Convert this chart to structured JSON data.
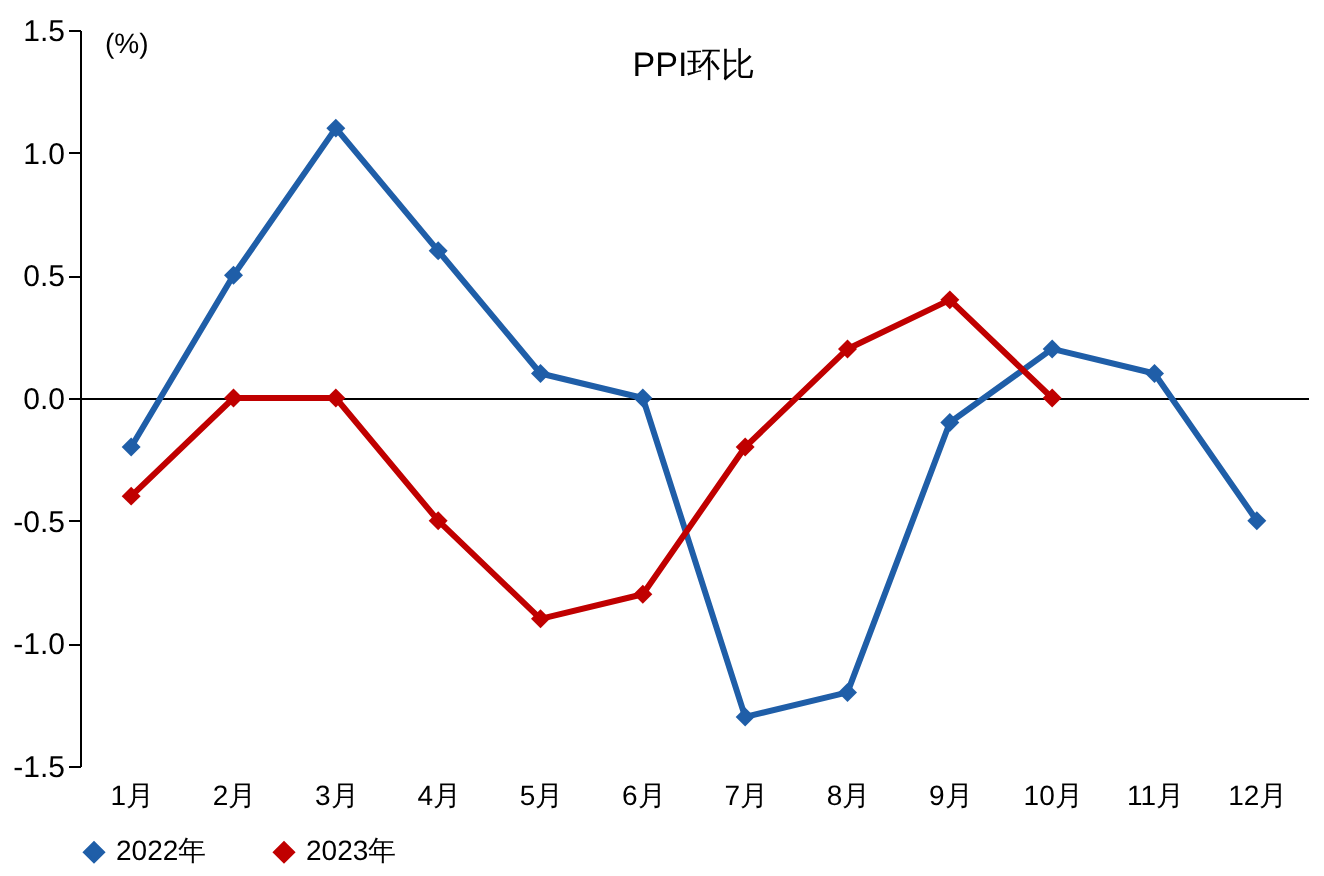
{
  "chart_data": {
    "type": "line",
    "title": "PPI环比",
    "ylabel": "(%)",
    "categories": [
      "1月",
      "2月",
      "3月",
      "4月",
      "5月",
      "6月",
      "7月",
      "8月",
      "9月",
      "10月",
      "11月",
      "12月"
    ],
    "series": [
      {
        "name": "2022年",
        "color": "#1f5ea8",
        "values": [
          -0.2,
          0.5,
          1.1,
          0.6,
          0.1,
          0.0,
          -1.3,
          -1.2,
          -0.1,
          0.2,
          0.1,
          -0.5
        ]
      },
      {
        "name": "2023年",
        "color": "#c00000",
        "values": [
          -0.4,
          0.0,
          0.0,
          -0.5,
          -0.9,
          -0.8,
          -0.2,
          0.2,
          0.4,
          0.0,
          null,
          null
        ]
      }
    ],
    "ylim": [
      -1.5,
      1.5
    ],
    "yticks": [
      {
        "value": -1.5,
        "label": "-1.5"
      },
      {
        "value": -1,
        "label": "-1.0"
      },
      {
        "value": -0.5,
        "label": "-0.5"
      },
      {
        "value": 0,
        "label": "0.0"
      },
      {
        "value": 0.5,
        "label": "0.5"
      },
      {
        "value": 1,
        "label": "1.0"
      },
      {
        "value": 1.5,
        "label": "1.5"
      }
    ],
    "legend": "bottom",
    "marker": "diamond",
    "line_style": "solid"
  }
}
